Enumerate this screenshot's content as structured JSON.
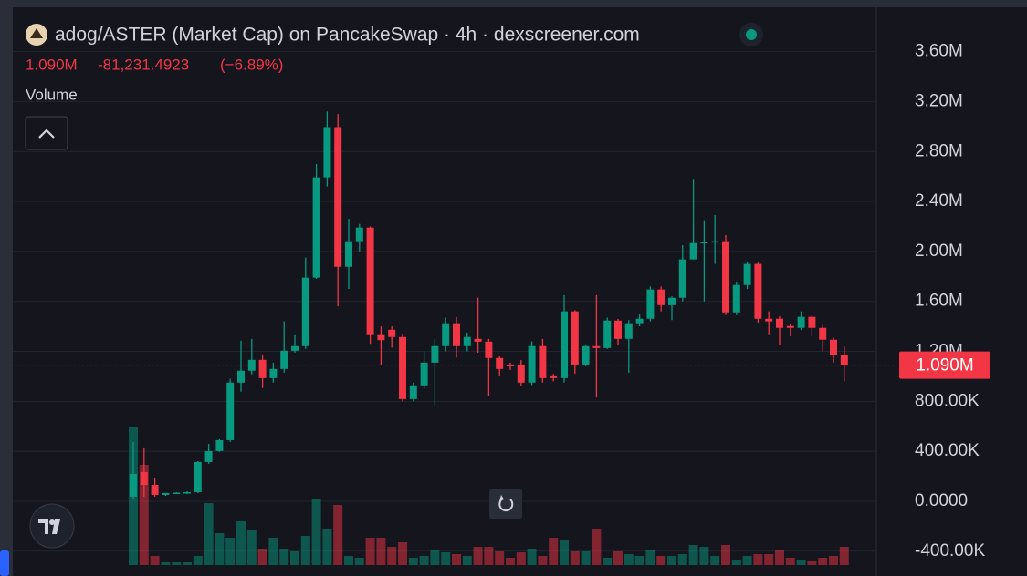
{
  "chart_data": {
    "type": "candlestick",
    "title": "adog/ASTER (Market Cap) on PancakeSwap · 4h · dexscreener.com",
    "legend_price": "1.090M",
    "legend_change": "-81,231.4923",
    "legend_change_pct": "(−6.89%)",
    "volume_label": "Volume",
    "up_color": "#089981",
    "down_color": "#f23645",
    "grid": true,
    "ylim": [
      -511000,
      3940000
    ],
    "yticks": [
      {
        "value": -400000,
        "label": "-400.00K"
      },
      {
        "value": 0,
        "label": "0.0000"
      },
      {
        "value": 400000,
        "label": "400.00K"
      },
      {
        "value": 800000,
        "label": "800.00K"
      },
      {
        "value": 1200000,
        "label": "1.20M"
      },
      {
        "value": 1600000,
        "label": "1.60M"
      },
      {
        "value": 2000000,
        "label": "2.00M"
      },
      {
        "value": 2400000,
        "label": "2.40M"
      },
      {
        "value": 2800000,
        "label": "2.80M"
      },
      {
        "value": 3200000,
        "label": "3.20M"
      },
      {
        "value": 3600000,
        "label": "3.60M"
      }
    ],
    "current_price": {
      "value": 1090000,
      "label": "1.090M"
    },
    "open": [
      37000,
      234000,
      131000,
      51000,
      66000,
      66000,
      73000,
      314000,
      402000,
      489000,
      950000,
      1045000,
      1132000,
      986000,
      1059000,
      1205000,
      1242000,
      1790000,
      2593000,
      2995000,
      1877000,
      2082000,
      2191000,
      1330000,
      1373000,
      1315000,
      818000,
      928000,
      1110000,
      1242000,
      1425000,
      1242000,
      1300000,
      1278000,
      1147000,
      1095000,
      1095000,
      950000,
      1242000,
      1000000,
      986000,
      1520000,
      1095000,
      1242000,
      1227000,
      1446000,
      1300000,
      1425000,
      1461000,
      1695000,
      1570000,
      1629000,
      1936000,
      2067000,
      2075000,
      2082000,
      1512000,
      1731000,
      1900000,
      1461000,
      1461000,
      1403000,
      1388000,
      1476000,
      1388000,
      1293000,
      1170000
    ],
    "high": [
      475000,
      424000,
      183000,
      66000,
      73000,
      80000,
      321000,
      460000,
      497000,
      980000,
      1285000,
      1300000,
      1175000,
      1110000,
      1440000,
      1330000,
      1950000,
      2700000,
      3120000,
      3100000,
      2260000,
      2220000,
      2200000,
      1400000,
      1400000,
      1340000,
      950000,
      1200000,
      1300000,
      1470000,
      1475000,
      1350000,
      1630000,
      1300000,
      1160000,
      1110000,
      1130000,
      1280000,
      1300000,
      1020000,
      1650000,
      1530000,
      1250000,
      1650000,
      1470000,
      1460000,
      1450000,
      1500000,
      1720000,
      1720000,
      1640000,
      2050000,
      2580000,
      2250000,
      2290000,
      2130000,
      1760000,
      1920000,
      1910000,
      1520000,
      1480000,
      1420000,
      1520000,
      1490000,
      1410000,
      1310000,
      1240000
    ],
    "low": [
      15000,
      37000,
      37000,
      44000,
      58000,
      58000,
      66000,
      300000,
      395000,
      475000,
      877000,
      1016000,
      906000,
      950000,
      1030000,
      1190000,
      1220000,
      1780000,
      2520000,
      1560000,
      1700000,
      2000000,
      1260000,
      1090000,
      1230000,
      800000,
      800000,
      900000,
      767000,
      1200000,
      1150000,
      1200000,
      1190000,
      840000,
      1000000,
      1050000,
      920000,
      930000,
      950000,
      960000,
      950000,
      1020000,
      1080000,
      830000,
      1220000,
      1250000,
      1030000,
      1400000,
      1440000,
      1520000,
      1450000,
      1600000,
      1950000,
      1600000,
      1900000,
      1490000,
      1490000,
      1700000,
      1430000,
      1330000,
      1250000,
      1320000,
      1370000,
      1320000,
      1200000,
      1110000,
      960000
    ],
    "close": [
      219000,
      131000,
      51000,
      66000,
      69000,
      73000,
      314000,
      402000,
      489000,
      950000,
      1045000,
      1132000,
      986000,
      1059000,
      1205000,
      1242000,
      1790000,
      2593000,
      2995000,
      1877000,
      2082000,
      2191000,
      1330000,
      1290000,
      1315000,
      818000,
      928000,
      1110000,
      1242000,
      1425000,
      1242000,
      1315000,
      1278000,
      1147000,
      1059000,
      1080000,
      950000,
      1242000,
      986000,
      986000,
      1520000,
      1095000,
      1242000,
      1227000,
      1446000,
      1300000,
      1425000,
      1461000,
      1695000,
      1570000,
      1629000,
      1936000,
      2067000,
      2075000,
      2082000,
      1512000,
      1731000,
      1900000,
      1461000,
      1440000,
      1388000,
      1388000,
      1476000,
      1388000,
      1293000,
      1170000,
      1090000
    ],
    "volume": [
      152,
      110,
      10,
      3,
      3,
      3,
      10,
      68,
      35,
      30,
      48,
      38,
      18,
      30,
      18,
      15,
      32,
      72,
      40,
      66,
      10,
      8,
      30,
      30,
      20,
      25,
      8,
      10,
      16,
      14,
      12,
      10,
      20,
      20,
      15,
      8,
      14,
      18,
      10,
      30,
      28,
      15,
      15,
      40,
      8,
      15,
      12,
      10,
      16,
      10,
      10,
      12,
      22,
      20,
      10,
      22,
      6,
      10,
      12,
      12,
      16,
      8,
      6,
      5,
      8,
      10,
      20
    ]
  }
}
